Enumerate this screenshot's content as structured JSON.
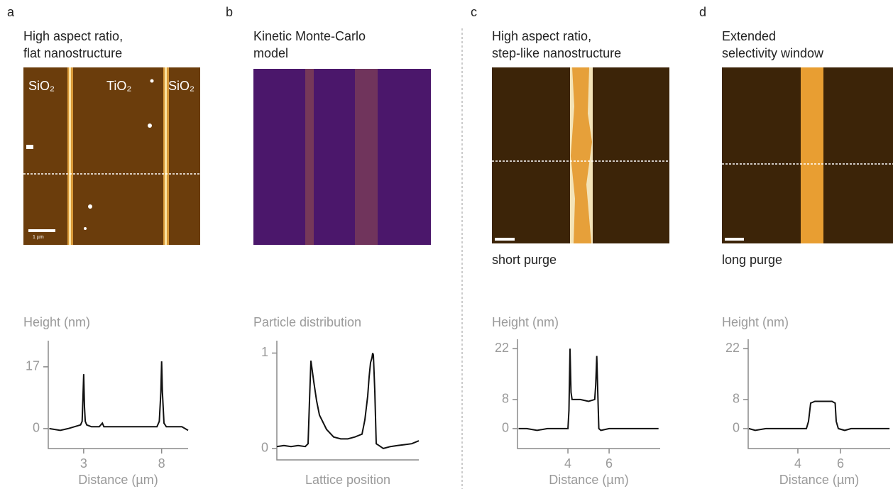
{
  "chart_data": [
    {
      "type": "line",
      "panel_label": "a",
      "image_title": [
        "High aspect ratio,",
        "flat nanostructure"
      ],
      "image_labels": [
        "SiO₂",
        "TiO₂",
        "SiO₂",
        "1 µm"
      ],
      "title": "Height (nm)",
      "xlabel": "Distance (µm)",
      "xlim": [
        0.73,
        9.7
      ],
      "ylim": [
        -5.5,
        24.2
      ],
      "xticks": [
        3,
        8
      ],
      "yticks": [
        0,
        17
      ],
      "x": [
        0.8,
        1.5,
        2.0,
        2.4,
        2.8,
        2.9,
        2.95,
        3.0,
        3.05,
        3.1,
        3.2,
        3.5,
        4.0,
        4.2,
        4.3,
        5.0,
        6.0,
        7.0,
        7.7,
        7.85,
        7.95,
        8.0,
        8.05,
        8.15,
        8.3,
        8.8,
        9.3,
        9.7
      ],
      "series": [
        {
          "color": "#111111",
          "values": [
            0,
            -0.5,
            0,
            0.5,
            1,
            2,
            8,
            15,
            6,
            2,
            1,
            0.5,
            0.5,
            1.5,
            0.5,
            0.5,
            0.5,
            0.5,
            0.5,
            2,
            10,
            18.5,
            10,
            1.5,
            0.5,
            0.5,
            0.5,
            -0.5
          ]
        }
      ]
    },
    {
      "type": "line",
      "panel_label": "b",
      "image_title": [
        "Kinetic Monte-Carlo",
        "model"
      ],
      "title": "Particle distribution",
      "xlabel": "Lattice position",
      "xlim": [
        0,
        100
      ],
      "ylim": [
        -0.12,
        1.13
      ],
      "yticks": [
        0,
        1
      ],
      "x": [
        0,
        5,
        10,
        15,
        20,
        22,
        23,
        24,
        26,
        28,
        30,
        35,
        40,
        45,
        50,
        55,
        60,
        62,
        64,
        65,
        66,
        67,
        67.5,
        68,
        69,
        70,
        72,
        75,
        80,
        85,
        90,
        95,
        100
      ],
      "series": [
        {
          "color": "#111111",
          "values": [
            0.02,
            0.03,
            0.02,
            0.03,
            0.02,
            0.05,
            0.5,
            0.92,
            0.7,
            0.5,
            0.35,
            0.2,
            0.12,
            0.1,
            0.1,
            0.12,
            0.15,
            0.3,
            0.55,
            0.75,
            0.9,
            0.95,
            1.0,
            0.98,
            0.6,
            0.05,
            0.03,
            0.0,
            0.02,
            0.03,
            0.04,
            0.05,
            0.08
          ]
        }
      ]
    },
    {
      "type": "line",
      "panel_label": "c",
      "image_title": [
        "High aspect ratio,",
        "step-like nanostructure"
      ],
      "image_caption": "short purge",
      "title": "Height (nm)",
      "xlabel": "Distance (µm)",
      "xlim": [
        1.55,
        8.48
      ],
      "ylim": [
        -5.5,
        24.6
      ],
      "xticks": [
        4,
        6
      ],
      "yticks": [
        0,
        8,
        22
      ],
      "x": [
        1.6,
        2,
        2.5,
        3,
        3.5,
        4.0,
        4.05,
        4.1,
        4.15,
        4.2,
        4.3,
        4.6,
        5.0,
        5.3,
        5.35,
        5.4,
        5.45,
        5.5,
        5.6,
        6,
        6.5,
        7,
        7.5,
        8,
        8.4
      ],
      "series": [
        {
          "color": "#111111",
          "values": [
            0,
            0,
            -0.5,
            0,
            0,
            0,
            5,
            22,
            10,
            8,
            8,
            8,
            7.5,
            8,
            12,
            20,
            10,
            0,
            -0.5,
            0,
            0,
            0,
            0,
            0,
            0
          ]
        }
      ]
    },
    {
      "type": "line",
      "panel_label": "d",
      "image_title": [
        "Extended",
        "selectivity window"
      ],
      "image_caption": "long purge",
      "title": "Height (nm)",
      "xlabel": "Distance (µm)",
      "xlim": [
        1.67,
        8.33
      ],
      "ylim": [
        -5.5,
        24.6
      ],
      "xticks": [
        4,
        6
      ],
      "yticks": [
        0,
        8,
        22
      ],
      "x": [
        1.7,
        2,
        2.5,
        3,
        3.5,
        4,
        4.4,
        4.5,
        4.6,
        4.8,
        5.2,
        5.6,
        5.75,
        5.8,
        5.9,
        6.2,
        6.5,
        7,
        7.5,
        8,
        8.3
      ],
      "series": [
        {
          "color": "#111111",
          "values": [
            0,
            -0.5,
            0,
            0,
            0,
            0,
            0,
            2,
            7,
            7.5,
            7.5,
            7.5,
            7,
            2,
            0,
            -0.5,
            0,
            0,
            0,
            0,
            0
          ]
        }
      ]
    }
  ]
}
